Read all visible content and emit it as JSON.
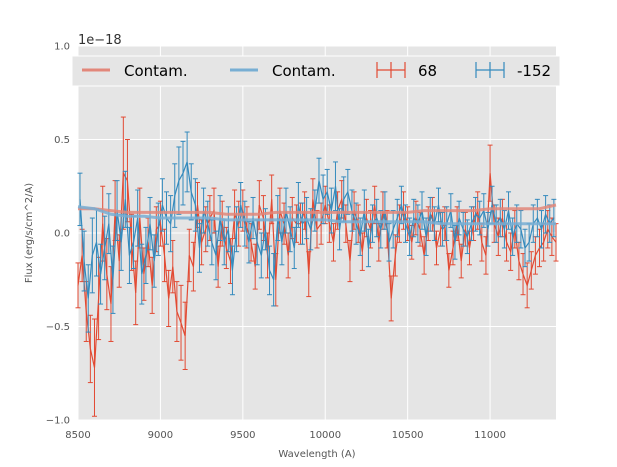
{
  "chart_data": {
    "type": "line",
    "title": "",
    "xlabel": "Wavelength (A)",
    "ylabel": "Flux (erg/s/cm^2/A)",
    "offset_text": "1e−18",
    "xlim": [
      8500,
      11400
    ],
    "ylim": [
      -1.0,
      1.0
    ],
    "xticks": [
      8500,
      9000,
      9500,
      10000,
      10500,
      11000
    ],
    "yticks": [
      -1.0,
      -0.5,
      0.0,
      0.5,
      1.0
    ],
    "xtick_labels": [
      "8500",
      "9000",
      "9500",
      "10000",
      "10500",
      "11000"
    ],
    "ytick_labels": [
      "−1.0",
      "−0.5",
      "0.0",
      "0.5",
      "1.0"
    ],
    "grid": true,
    "legend_position": "top",
    "legend": [
      {
        "label": "Contam.",
        "kind": "line",
        "color": "#e2877a"
      },
      {
        "label": "Contam.",
        "kind": "line",
        "color": "#78aed3"
      },
      {
        "label": "68",
        "kind": "errorbar",
        "color": "#e24a33"
      },
      {
        "label": "-152",
        "kind": "errorbar",
        "color": "#348abd"
      }
    ],
    "colors": {
      "red": "#e24a33",
      "blue": "#348abd",
      "red_contam": "#e2877a",
      "blue_contam": "#78aed3",
      "plot_bg": "#e5e5e5",
      "grid": "#ffffff"
    },
    "series": [
      {
        "name": "68",
        "style": "errorbar",
        "color": "#e24a33",
        "x": [
          8500,
          8525,
          8550,
          8575,
          8600,
          8625,
          8650,
          8675,
          8700,
          8725,
          8750,
          8775,
          8800,
          8825,
          8850,
          8875,
          8900,
          8925,
          8950,
          8975,
          9000,
          9025,
          9050,
          9075,
          9100,
          9125,
          9150,
          9175,
          9200,
          9225,
          9250,
          9275,
          9300,
          9325,
          9350,
          9375,
          9400,
          9425,
          9450,
          9475,
          9500,
          9525,
          9550,
          9575,
          9600,
          9625,
          9650,
          9675,
          9700,
          9725,
          9750,
          9775,
          9800,
          9825,
          9850,
          9875,
          9900,
          9925,
          9950,
          9975,
          10000,
          10025,
          10050,
          10075,
          10100,
          10125,
          10150,
          10175,
          10200,
          10225,
          10250,
          10275,
          10300,
          10325,
          10350,
          10375,
          10400,
          10425,
          10450,
          10475,
          10500,
          10525,
          10550,
          10575,
          10600,
          10625,
          10650,
          10675,
          10700,
          10725,
          10750,
          10775,
          10800,
          10825,
          10850,
          10875,
          10900,
          10925,
          10950,
          10975,
          11000,
          11025,
          11050,
          11075,
          11100,
          11125,
          11150,
          11175,
          11200,
          11225,
          11250,
          11275,
          11300,
          11325,
          11350,
          11375,
          11400
        ],
        "y": [
          -0.28,
          -0.12,
          -0.42,
          -0.62,
          -0.72,
          -0.35,
          0.05,
          -0.22,
          -0.38,
          0.12,
          -0.15,
          0.32,
          0.28,
          -0.05,
          -0.32,
          0.08,
          -0.22,
          -0.05,
          -0.28,
          0.02,
          0.05,
          -0.12,
          -0.35,
          -0.18,
          -0.42,
          -0.48,
          -0.55,
          -0.12,
          -0.18,
          0.15,
          -0.05,
          0.02,
          0.08,
          0.12,
          -0.18,
          0.05,
          -0.08,
          -0.15,
          0.1,
          0.05,
          0.12,
          0.03,
          -0.05,
          -0.18,
          0.15,
          0.08,
          -0.12,
          0.18,
          -0.25,
          0.12,
          0.05,
          -0.12,
          0.08,
          0.05,
          0.05,
          0.12,
          -0.22,
          0.18,
          0.02,
          0.05,
          0.15,
          0.05,
          -0.05,
          0.12,
          0.18,
          0.05,
          -0.15,
          0.12,
          0.05,
          -0.1,
          0.08,
          0.02,
          0.15,
          -0.05,
          0.12,
          0.02,
          -0.35,
          -0.12,
          0.05,
          0.12,
          0.05,
          -0.05,
          0.08,
          0.02,
          -0.12,
          0.05,
          0.1,
          -0.08,
          0.02,
          0.05,
          -0.2,
          -0.08,
          0.05,
          -0.15,
          0.02,
          -0.08,
          0.05,
          0.12,
          -0.05,
          -0.12,
          0.32,
          0.05,
          -0.02,
          0.08,
          -0.05,
          -0.1,
          0.02,
          -0.15,
          -0.22,
          -0.28,
          -0.2,
          -0.12,
          -0.08,
          -0.05,
          0.02,
          -0.02,
          -0.05
        ],
        "err": [
          0.12,
          0.14,
          0.16,
          0.18,
          0.26,
          0.22,
          0.2,
          0.19,
          0.2,
          0.16,
          0.14,
          0.3,
          0.22,
          0.15,
          0.17,
          0.16,
          0.14,
          0.13,
          0.15,
          0.12,
          0.12,
          0.14,
          0.15,
          0.14,
          0.16,
          0.2,
          0.18,
          0.14,
          0.13,
          0.12,
          0.12,
          0.12,
          0.12,
          0.12,
          0.11,
          0.12,
          0.11,
          0.12,
          0.13,
          0.12,
          0.11,
          0.11,
          0.1,
          0.12,
          0.13,
          0.12,
          0.12,
          0.13,
          0.14,
          0.12,
          0.11,
          0.12,
          0.11,
          0.1,
          0.11,
          0.1,
          0.12,
          0.11,
          0.1,
          0.11,
          0.1,
          0.1,
          0.1,
          0.1,
          0.1,
          0.1,
          0.11,
          0.1,
          0.1,
          0.1,
          0.1,
          0.1,
          0.1,
          0.1,
          0.1,
          0.1,
          0.12,
          0.11,
          0.1,
          0.1,
          0.09,
          0.09,
          0.09,
          0.09,
          0.1,
          0.09,
          0.09,
          0.09,
          0.09,
          0.09,
          0.09,
          0.09,
          0.09,
          0.09,
          0.09,
          0.09,
          0.09,
          0.1,
          0.1,
          0.1,
          0.15,
          0.1,
          0.1,
          0.1,
          0.1,
          0.1,
          0.1,
          0.1,
          0.11,
          0.12,
          0.1,
          0.1,
          0.1,
          0.1,
          0.1,
          0.1,
          0.1
        ]
      },
      {
        "name": "-152",
        "style": "errorbar",
        "color": "#348abd",
        "x": [
          8512,
          8537,
          8562,
          8587,
          8612,
          8637,
          8662,
          8687,
          8712,
          8737,
          8762,
          8787,
          8812,
          8837,
          8862,
          8887,
          8912,
          8937,
          8962,
          8987,
          9012,
          9037,
          9062,
          9087,
          9112,
          9137,
          9162,
          9187,
          9212,
          9237,
          9262,
          9287,
          9312,
          9337,
          9362,
          9387,
          9412,
          9437,
          9462,
          9487,
          9512,
          9537,
          9562,
          9587,
          9612,
          9637,
          9662,
          9687,
          9712,
          9737,
          9762,
          9787,
          9812,
          9837,
          9862,
          9887,
          9912,
          9937,
          9962,
          9987,
          10012,
          10037,
          10062,
          10087,
          10112,
          10137,
          10162,
          10187,
          10212,
          10237,
          10262,
          10287,
          10312,
          10337,
          10362,
          10387,
          10412,
          10437,
          10462,
          10487,
          10512,
          10537,
          10562,
          10587,
          10612,
          10637,
          10662,
          10687,
          10712,
          10737,
          10762,
          10787,
          10812,
          10837,
          10862,
          10887,
          10912,
          10937,
          10962,
          10987,
          11012,
          11037,
          11062,
          11087,
          11112,
          11137,
          11162,
          11187,
          11212,
          11237,
          11262,
          11287,
          11312,
          11337,
          11362,
          11387
        ],
        "y": [
          0.18,
          -0.15,
          -0.35,
          -0.12,
          -0.05,
          -0.22,
          -0.08,
          0.05,
          -0.25,
          0.12,
          -0.05,
          0.18,
          -0.12,
          -0.05,
          0.08,
          -0.22,
          -0.12,
          0.05,
          -0.15,
          0.02,
          0.15,
          0.08,
          0.05,
          0.2,
          0.28,
          0.32,
          0.38,
          0.22,
          0.15,
          -0.08,
          0.12,
          0.05,
          -0.05,
          -0.12,
          0.08,
          -0.05,
          0.02,
          -0.2,
          0.02,
          0.15,
          0.05,
          -0.05,
          0.08,
          -0.05,
          -0.12,
          0.02,
          -0.2,
          -0.25,
          0.08,
          -0.05,
          0.12,
          0.02,
          -0.08,
          0.15,
          0.05,
          0.08,
          0.02,
          0.12,
          0.28,
          0.18,
          0.22,
          0.12,
          0.25,
          0.02,
          0.18,
          0.22,
          0.12,
          0.05,
          -0.02,
          0.12,
          -0.08,
          0.05,
          0.08,
          0.02,
          0.12,
          -0.05,
          0.02,
          0.08,
          0.15,
          0.05,
          -0.02,
          0.08,
          0.05,
          0.12,
          -0.02,
          0.1,
          0.05,
          0.15,
          0.02,
          0.05,
          0.12,
          -0.05,
          0.08,
          0.02,
          -0.02,
          0.05,
          0.1,
          0.08,
          0.12,
          0.02,
          0.15,
          0.05,
          0.08,
          0.02,
          0.12,
          -0.02,
          0.05,
          0.02,
          -0.08,
          -0.05,
          0.05,
          0.08,
          0.02,
          0.1,
          0.05,
          0.08
        ],
        "err": [
          0.14,
          0.16,
          0.18,
          0.2,
          0.18,
          0.16,
          0.17,
          0.16,
          0.18,
          0.16,
          0.15,
          0.15,
          0.15,
          0.14,
          0.15,
          0.16,
          0.15,
          0.14,
          0.14,
          0.14,
          0.14,
          0.14,
          0.15,
          0.17,
          0.18,
          0.17,
          0.16,
          0.15,
          0.14,
          0.13,
          0.12,
          0.12,
          0.12,
          0.13,
          0.12,
          0.12,
          0.12,
          0.13,
          0.12,
          0.12,
          0.12,
          0.11,
          0.11,
          0.12,
          0.12,
          0.11,
          0.13,
          0.14,
          0.12,
          0.12,
          0.12,
          0.12,
          0.11,
          0.12,
          0.11,
          0.11,
          0.11,
          0.11,
          0.12,
          0.13,
          0.12,
          0.12,
          0.13,
          0.11,
          0.12,
          0.12,
          0.11,
          0.11,
          0.1,
          0.11,
          0.1,
          0.1,
          0.1,
          0.1,
          0.1,
          0.1,
          0.1,
          0.1,
          0.1,
          0.1,
          0.1,
          0.1,
          0.1,
          0.1,
          0.1,
          0.09,
          0.09,
          0.09,
          0.09,
          0.09,
          0.09,
          0.09,
          0.09,
          0.09,
          0.09,
          0.09,
          0.09,
          0.09,
          0.09,
          0.09,
          0.1,
          0.1,
          0.1,
          0.1,
          0.1,
          0.1,
          0.1,
          0.1,
          0.1,
          0.1,
          0.1,
          0.1,
          0.1,
          0.1,
          0.1,
          0.1
        ]
      },
      {
        "name": "Contam.",
        "style": "line",
        "color": "#e2877a",
        "x": [
          8500,
          8600,
          8700,
          8800,
          8900,
          9000,
          9100,
          9200,
          9300,
          9400,
          9500,
          9600,
          9700,
          9800,
          9900,
          10000,
          10100,
          10200,
          10300,
          10400,
          10500,
          10600,
          10700,
          10800,
          10900,
          11000,
          11100,
          11200,
          11300,
          11400
        ],
        "y": [
          0.13,
          0.13,
          0.12,
          0.11,
          0.11,
          0.11,
          0.11,
          0.11,
          0.11,
          0.1,
          0.1,
          0.1,
          0.11,
          0.11,
          0.11,
          0.11,
          0.11,
          0.11,
          0.11,
          0.11,
          0.11,
          0.12,
          0.12,
          0.12,
          0.12,
          0.13,
          0.13,
          0.13,
          0.13,
          0.15
        ]
      },
      {
        "name": "Contam.",
        "style": "line",
        "color": "#78aed3",
        "x": [
          8500,
          8600,
          8700,
          8800,
          8900,
          9000,
          9100,
          9200,
          9300,
          9400,
          9500,
          9600,
          9700,
          9800,
          9900,
          10000,
          10100,
          10200,
          10300,
          10400,
          10500,
          10600,
          10700,
          10800,
          10900,
          11000,
          11100,
          11200,
          11300,
          11400
        ],
        "y": [
          0.14,
          0.13,
          0.1,
          0.09,
          0.09,
          0.08,
          0.08,
          0.08,
          0.08,
          0.07,
          0.07,
          0.07,
          0.07,
          0.07,
          0.07,
          0.07,
          0.06,
          0.06,
          0.06,
          0.06,
          0.06,
          0.06,
          0.05,
          0.05,
          0.05,
          0.05,
          0.05,
          0.05,
          0.05,
          0.05
        ]
      }
    ]
  }
}
